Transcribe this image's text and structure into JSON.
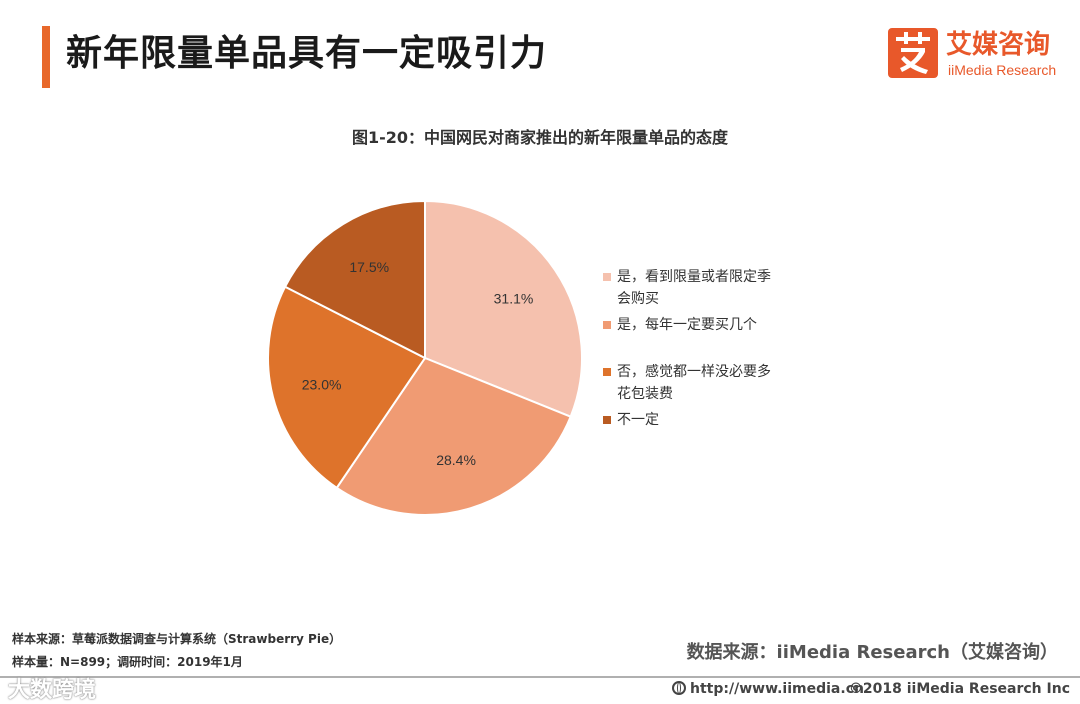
{
  "header": {
    "title": "新年限量单品具有一定吸引力",
    "logo_cn": "艾媒咨询",
    "logo_en": "iiMedia Research"
  },
  "chart_data": {
    "type": "pie",
    "title": "图1-20：中国网民对商家推出的新年限量单品的态度",
    "categories": [
      "是，看到限量或者限定季会购买",
      "是，每年一定要买几个",
      "否，感觉都一样没必要多花包装费",
      "不一定"
    ],
    "values": [
      31.1,
      28.4,
      23.0,
      17.5
    ],
    "value_labels": [
      "31.1%",
      "28.4%",
      "23.0%",
      "17.5%"
    ],
    "colors": [
      "#f5c1ae",
      "#f09b73",
      "#de732b",
      "#b95b22"
    ],
    "legend_position": "right",
    "start": "top-clockwise"
  },
  "footer": {
    "sample_source": "样本来源：草莓派数据调查与计算系统（Strawberry Pie）",
    "sample_size": "样本量：N=899；调研时间：2019年1月",
    "data_source": "数据来源：iiMedia Research（艾媒咨询）",
    "url": "http://www.iimedia.cn",
    "copyright": "©2018  iiMedia Research  Inc",
    "watermark": "大数跨境"
  }
}
